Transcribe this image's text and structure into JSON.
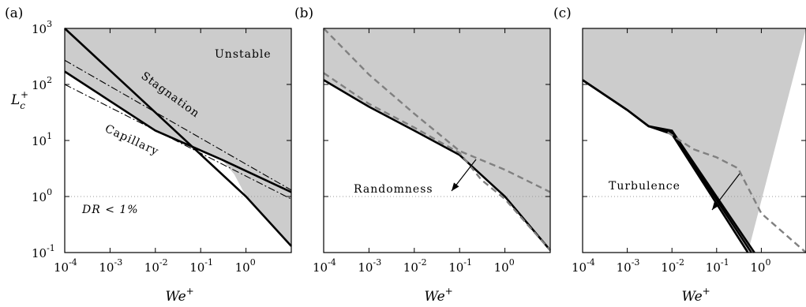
{
  "figure": {
    "panel_labels": [
      "(a)",
      "(b)",
      "(c)"
    ],
    "x_ticks": [
      "-4",
      "-3",
      "-2",
      "-1",
      "0"
    ],
    "y_ticks": [
      "-1",
      "0",
      "1",
      "2",
      "3"
    ],
    "xlabel": "We+",
    "ylabel": "Lc+",
    "colors": {
      "unstable": "#cccccc",
      "curve": "#000000",
      "dashed": "#808080",
      "dotted": "#999999"
    }
  },
  "chart_data": [
    {
      "type": "area",
      "panel": "(a)",
      "xlabel": "We+",
      "ylabel": "Lc+",
      "xscale": "log",
      "yscale": "log",
      "xlim": [
        0.0001,
        10
      ],
      "ylim": [
        0.1,
        1000
      ],
      "annotations": [
        "Unstable",
        "Stagnation",
        "Capillary",
        "DR < 1%"
      ],
      "series": [
        {
          "name": "Stagnation",
          "style": "solid",
          "x": [
            0.0001,
            1,
            10
          ],
          "y": [
            1000,
            1.0,
            0.13
          ]
        },
        {
          "name": "Capillary",
          "style": "solid",
          "x": [
            0.0001,
            0.01,
            0.3,
            10
          ],
          "y": [
            170,
            15,
            4.5,
            1.2
          ]
        },
        {
          "style": "dashdot",
          "x": [
            0.0001,
            10
          ],
          "y": [
            270,
            1.3
          ]
        },
        {
          "style": "dashdot",
          "x": [
            0.0001,
            10
          ],
          "y": [
            100,
            0.9
          ]
        },
        {
          "name": "DR < 1%",
          "style": "dotted",
          "x": [
            0.0001,
            10
          ],
          "y": [
            1,
            1
          ]
        }
      ],
      "unstable_boundary": {
        "x": [
          0.0001,
          0.01,
          0.3,
          0.55,
          1,
          10
        ],
        "y": [
          170,
          15,
          4.5,
          2.5,
          1.0,
          0.13
        ]
      }
    },
    {
      "type": "area",
      "panel": "(b)",
      "xlabel": "We+",
      "xscale": "log",
      "yscale": "log",
      "xlim": [
        0.0001,
        10
      ],
      "ylim": [
        0.1,
        1000
      ],
      "annotations": [
        "Randomness"
      ],
      "series": [
        {
          "style": "solid",
          "x": [
            0.0001,
            0.001,
            0.01,
            0.1,
            1,
            10
          ],
          "y": [
            120,
            40,
            15,
            5.5,
            1.0,
            0.11
          ]
        },
        {
          "style": "dashed",
          "x": [
            0.0001,
            0.001,
            0.01,
            0.1,
            1,
            10
          ],
          "y": [
            1000,
            150,
            30,
            6.5,
            3.0,
            1.2
          ]
        },
        {
          "style": "dashed",
          "x": [
            0.0001,
            0.001,
            0.01,
            0.1,
            0.3,
            1,
            10
          ],
          "y": [
            160,
            45,
            17,
            6,
            2.0,
            0.9,
            0.11
          ]
        },
        {
          "name": "DR < 1%",
          "style": "dotted",
          "x": [
            0.0001,
            10
          ],
          "y": [
            1,
            1
          ]
        }
      ]
    },
    {
      "type": "area",
      "panel": "(c)",
      "xlabel": "We+",
      "xscale": "log",
      "yscale": "log",
      "xlim": [
        0.0001,
        10
      ],
      "ylim": [
        0.1,
        1000
      ],
      "annotations": [
        "Turbulence"
      ],
      "series": [
        {
          "style": "solid",
          "x": [
            0.0001,
            0.001,
            0.003,
            0.01,
            0.5
          ],
          "y": [
            120,
            35,
            18,
            13,
            0.1
          ]
        },
        {
          "style": "solid",
          "x": [
            0.0001,
            0.001,
            0.003,
            0.01,
            0.6
          ],
          "y": [
            120,
            35,
            18,
            14,
            0.1
          ]
        },
        {
          "style": "solid",
          "x": [
            0.0001,
            0.001,
            0.003,
            0.01,
            0.7
          ],
          "y": [
            120,
            35,
            18,
            15,
            0.1
          ]
        },
        {
          "style": "dashed",
          "x": [
            0.008,
            0.03,
            0.1,
            0.3,
            1,
            10
          ],
          "y": [
            14,
            7,
            5,
            3.2,
            0.5,
            0.1
          ]
        },
        {
          "name": "DR < 1%",
          "style": "dotted",
          "x": [
            0.0001,
            10
          ],
          "y": [
            1,
            1
          ]
        }
      ]
    }
  ]
}
